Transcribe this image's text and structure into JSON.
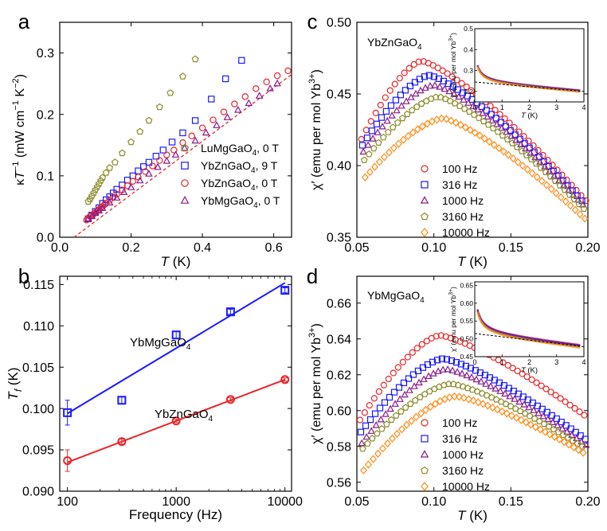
{
  "chart_data": [
    {
      "panel": "a",
      "type": "scatter",
      "xlabel": "T (K)",
      "ylabel": "κT⁻¹ (mW cm⁻¹ K⁻²)",
      "xlim": [
        0,
        0.65
      ],
      "ylim": [
        0,
        0.35
      ],
      "xticks": [
        0,
        0.2,
        0.4,
        0.6
      ],
      "xtick_labels": [
        "0.0",
        "0.2",
        "0.4",
        "0.6"
      ],
      "yticks": [
        0,
        0.1,
        0.2,
        0.3
      ],
      "ytick_labels": [
        "0.0",
        "0.1",
        "0.2",
        "0.3"
      ],
      "legend": "bottom-right",
      "series": [
        {
          "name": "LuMgGaO4, 0 T",
          "color": "#8b8b2a",
          "marker": "pentagon",
          "x": [
            0.08,
            0.085,
            0.09,
            0.095,
            0.1,
            0.105,
            0.11,
            0.115,
            0.12,
            0.13,
            0.14,
            0.155,
            0.175,
            0.2,
            0.225,
            0.25,
            0.28,
            0.31,
            0.345,
            0.38
          ],
          "y": [
            0.058,
            0.062,
            0.067,
            0.072,
            0.077,
            0.082,
            0.087,
            0.092,
            0.097,
            0.105,
            0.113,
            0.122,
            0.137,
            0.155,
            0.172,
            0.19,
            0.212,
            0.235,
            0.262,
            0.29
          ]
        },
        {
          "name": "YbZnGaO4, 9 T",
          "color": "#1a1aff",
          "marker": "square",
          "x": [
            0.08,
            0.09,
            0.1,
            0.11,
            0.12,
            0.13,
            0.14,
            0.15,
            0.16,
            0.175,
            0.19,
            0.205,
            0.22,
            0.235,
            0.25,
            0.27,
            0.29,
            0.315,
            0.345,
            0.38,
            0.425,
            0.465,
            0.51
          ],
          "y": [
            0.03,
            0.036,
            0.042,
            0.048,
            0.055,
            0.061,
            0.066,
            0.072,
            0.078,
            0.085,
            0.093,
            0.1,
            0.108,
            0.115,
            0.122,
            0.132,
            0.142,
            0.155,
            0.17,
            0.19,
            0.225,
            0.258,
            0.288
          ]
        },
        {
          "name": "YbZnGaO4, 0 T",
          "color": "#e8262a",
          "marker": "circle",
          "x": [
            0.075,
            0.08,
            0.085,
            0.09,
            0.095,
            0.1,
            0.105,
            0.11,
            0.115,
            0.12,
            0.125,
            0.13,
            0.14,
            0.15,
            0.16,
            0.175,
            0.19,
            0.205,
            0.22,
            0.24,
            0.26,
            0.28,
            0.3,
            0.32,
            0.345,
            0.37,
            0.4,
            0.43,
            0.46,
            0.49,
            0.52,
            0.55,
            0.58,
            0.61,
            0.64
          ],
          "y": [
            0.028,
            0.031,
            0.034,
            0.036,
            0.038,
            0.04,
            0.043,
            0.045,
            0.048,
            0.05,
            0.053,
            0.055,
            0.06,
            0.065,
            0.07,
            0.077,
            0.084,
            0.091,
            0.098,
            0.107,
            0.116,
            0.125,
            0.134,
            0.142,
            0.154,
            0.165,
            0.178,
            0.191,
            0.204,
            0.217,
            0.229,
            0.242,
            0.253,
            0.263,
            0.271
          ]
        },
        {
          "name": "YbMgGaO4, 0 T",
          "color": "#8a1a8a",
          "marker": "triangle",
          "x": [
            0.08,
            0.09,
            0.1,
            0.11,
            0.12,
            0.14,
            0.16,
            0.18,
            0.2,
            0.225,
            0.25,
            0.275,
            0.3,
            0.325,
            0.35,
            0.38,
            0.41,
            0.44,
            0.47,
            0.5,
            0.53,
            0.56,
            0.59,
            0.61
          ],
          "y": [
            0.03,
            0.034,
            0.039,
            0.043,
            0.047,
            0.056,
            0.064,
            0.073,
            0.081,
            0.092,
            0.103,
            0.114,
            0.124,
            0.134,
            0.145,
            0.157,
            0.17,
            0.182,
            0.195,
            0.207,
            0.218,
            0.23,
            0.242,
            0.25
          ]
        }
      ],
      "fit_line": {
        "x": [
          0.04,
          0.65
        ],
        "y": [
          0.0,
          0.265
        ],
        "style": "dashed",
        "color": "#e8262a"
      }
    },
    {
      "panel": "b",
      "type": "scatter",
      "xscale": "log",
      "xlabel": "Frequency (Hz)",
      "ylabel": "Tf (K)",
      "xlim": [
        85,
        11500
      ],
      "ylim": [
        0.09,
        0.116
      ],
      "xticks": [
        100,
        1000,
        10000
      ],
      "xtick_labels": [
        "100",
        "1000",
        "10000"
      ],
      "yticks": [
        0.09,
        0.095,
        0.1,
        0.105,
        0.11,
        0.115
      ],
      "ytick_labels": [
        "0.090",
        "0.095",
        "0.100",
        "0.105",
        "0.110",
        "0.115"
      ],
      "series": [
        {
          "name": "YbMgGaO4",
          "color": "#1a1aff",
          "marker": "square",
          "x": [
            100,
            316,
            1000,
            3160,
            10000
          ],
          "y": [
            0.0995,
            0.101,
            0.1089,
            0.1117,
            0.1143
          ],
          "err": [
            0.0015,
            0.0004,
            0.0004,
            0.0003,
            0.0003
          ],
          "fit": {
            "x": [
              100,
              10000
            ],
            "y": [
              0.0994,
              0.1152
            ]
          }
        },
        {
          "name": "YbZnGaO4",
          "color": "#e8262a",
          "marker": "circle",
          "x": [
            100,
            316,
            1000,
            3160,
            10000
          ],
          "y": [
            0.0937,
            0.096,
            0.0985,
            0.1011,
            0.1035
          ],
          "err": [
            0.0013,
            0.0003,
            0.0002,
            0.0002,
            0.0002
          ],
          "fit": {
            "x": [
              100,
              10000
            ],
            "y": [
              0.0935,
              0.1035
            ]
          }
        }
      ]
    },
    {
      "panel": "c",
      "type": "scatter",
      "title": "YbZnGaO4",
      "xlabel": "T (K)",
      "ylabel": "χ′ (emu per mol Yb³⁺)",
      "xlim": [
        0.05,
        0.2
      ],
      "ylim": [
        0.35,
        0.5
      ],
      "xticks": [
        0.05,
        0.1,
        0.15,
        0.2
      ],
      "xtick_labels": [
        "0.05",
        "0.10",
        "0.15",
        "0.20"
      ],
      "yticks": [
        0.35,
        0.4,
        0.45,
        0.5
      ],
      "ytick_labels": [
        "0.35",
        "0.40",
        "0.45",
        "0.50"
      ],
      "legend": "bottom-left",
      "peak_model": {
        "x_sample_start": 0.053,
        "x_sample_step": 0.0031,
        "x_sample_end": 0.199
      },
      "series": [
        {
          "name": "100 Hz",
          "color": "#e8262a",
          "marker": "circle",
          "start": 0.412,
          "peak": 0.473,
          "peak_x": 0.092,
          "end": 0.374
        },
        {
          "name": "316 Hz",
          "color": "#1a1aff",
          "marker": "square",
          "start": 0.408,
          "peak": 0.463,
          "peak_x": 0.097,
          "end": 0.371
        },
        {
          "name": "1000 Hz",
          "color": "#8a1a8a",
          "marker": "triangle",
          "start": 0.403,
          "peak": 0.456,
          "peak_x": 0.1,
          "end": 0.369
        },
        {
          "name": "3160 Hz",
          "color": "#8b8b2a",
          "marker": "pentagon",
          "start": 0.397,
          "peak": 0.448,
          "peak_x": 0.103,
          "end": 0.367
        },
        {
          "name": "10000 Hz",
          "color": "#ff8c1a",
          "marker": "diamond",
          "start": 0.385,
          "peak": 0.433,
          "peak_x": 0.106,
          "end": 0.361
        }
      ],
      "inset": {
        "xlabel": "T (K)",
        "ylabel": "χ′ (emu per mol Yb³⁺)",
        "xlim": [
          0,
          4
        ],
        "ylim": [
          0.15,
          0.5
        ],
        "xticks": [
          0,
          1,
          2,
          3,
          4
        ],
        "yticks": [
          0.2,
          0.3,
          0.4,
          0.5
        ],
        "ytick_labels": [
          "0.2",
          "0.3",
          "0.4",
          "0.5"
        ],
        "curve": {
          "a": 0.05,
          "b": 0.095,
          "t0": 0.1
        },
        "asymptote": {
          "x": [
            0.0,
            4.0
          ],
          "y": [
            0.245,
            0.2
          ]
        }
      }
    },
    {
      "panel": "d",
      "type": "scatter",
      "title": "YbMgGaO4",
      "xlabel": "T (K)",
      "ylabel": "χ′ (emu per mol Yb³⁺)",
      "xlim": [
        0.05,
        0.2
      ],
      "ylim": [
        0.555,
        0.675
      ],
      "xticks": [
        0.05,
        0.1,
        0.15,
        0.2
      ],
      "xtick_labels": [
        "0.05",
        "0.10",
        "0.15",
        "0.20"
      ],
      "yticks": [
        0.56,
        0.58,
        0.6,
        0.62,
        0.64,
        0.66
      ],
      "ytick_labels": [
        "0.56",
        "0.58",
        "0.60",
        "0.62",
        "0.64",
        "0.66"
      ],
      "legend": "bottom-center",
      "peak_model": {
        "x_sample_start": 0.052,
        "x_sample_step": 0.0031,
        "x_sample_end": 0.199
      },
      "series": [
        {
          "name": "100 Hz",
          "color": "#e8262a",
          "marker": "circle",
          "start": 0.592,
          "peak": 0.642,
          "peak_x": 0.104,
          "end": 0.596
        },
        {
          "name": "316 Hz",
          "color": "#1a1aff",
          "marker": "square",
          "start": 0.585,
          "peak": 0.629,
          "peak_x": 0.106,
          "end": 0.583
        },
        {
          "name": "1000 Hz",
          "color": "#8a1a8a",
          "marker": "triangle",
          "start": 0.578,
          "peak": 0.623,
          "peak_x": 0.108,
          "end": 0.58
        },
        {
          "name": "3160 Hz",
          "color": "#8b8b2a",
          "marker": "pentagon",
          "start": 0.575,
          "peak": 0.615,
          "peak_x": 0.111,
          "end": 0.578
        },
        {
          "name": "10000 Hz",
          "color": "#ff8c1a",
          "marker": "diamond",
          "start": 0.562,
          "peak": 0.608,
          "peak_x": 0.114,
          "end": 0.575
        }
      ],
      "inset": {
        "xlabel": "T (K)",
        "ylabel": "χ′ (emu per mol Yb³⁺)",
        "xlim": [
          0,
          4
        ],
        "ylim": [
          0.45,
          0.66
        ],
        "xticks": [
          0,
          1,
          2,
          3,
          4
        ],
        "yticks": [
          0.45,
          0.5,
          0.55,
          0.6,
          0.65
        ],
        "ytick_labels": [
          "0.45",
          "0.50",
          "0.55",
          "0.60",
          "0.65"
        ],
        "curve": {
          "a": 0.048,
          "b": 0.055,
          "t0": 0.12
        },
        "asymptote": {
          "x": [
            0.0,
            4.0
          ],
          "y": [
            0.515,
            0.478
          ]
        }
      }
    }
  ]
}
